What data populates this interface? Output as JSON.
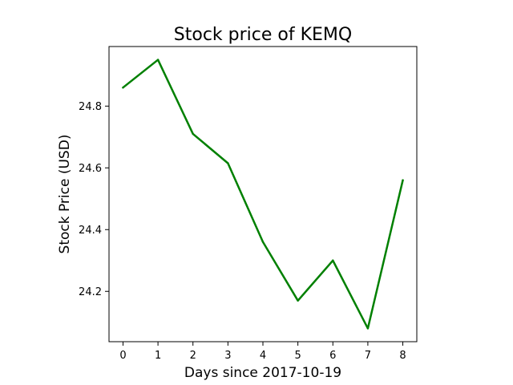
{
  "chart_data": {
    "type": "line",
    "title": "Stock price of KEMQ",
    "xlabel": "Days since 2017-10-19",
    "ylabel": "Stock Price (USD)",
    "x": [
      0,
      1,
      2,
      3,
      4,
      5,
      6,
      7,
      8
    ],
    "series": [
      {
        "values": [
          24.86,
          24.95,
          24.71,
          24.615,
          24.36,
          24.17,
          24.3,
          24.08,
          24.56
        ],
        "color": "#008000"
      }
    ],
    "xticks": [
      0,
      1,
      2,
      3,
      4,
      5,
      6,
      7,
      8
    ],
    "xtick_labels": [
      "0",
      "1",
      "2",
      "3",
      "4",
      "5",
      "6",
      "7",
      "8"
    ],
    "yticks": [
      24.2,
      24.4,
      24.6,
      24.8
    ],
    "ytick_labels": [
      "24.2",
      "24.4",
      "24.6",
      "24.8"
    ],
    "xlim": [
      -0.4,
      8.4
    ],
    "ylim": [
      24.037,
      24.993
    ],
    "grid": false,
    "legend": false
  }
}
